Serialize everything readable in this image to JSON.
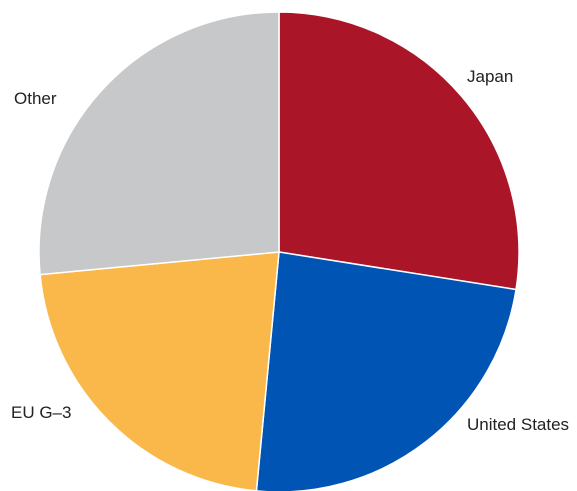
{
  "chart_data": {
    "type": "pie",
    "title": "",
    "start": "top",
    "direction": "clockwise",
    "slices": [
      {
        "label": "Japan",
        "value": 27.5,
        "color": "#AA1628"
      },
      {
        "label": "United States",
        "value": 24.0,
        "color": "#0054B4"
      },
      {
        "label": "EU G–3",
        "value": 22.0,
        "color": "#FBB84A"
      },
      {
        "label": "Other",
        "value": 26.5,
        "color": "#C7C8CA"
      }
    ]
  }
}
